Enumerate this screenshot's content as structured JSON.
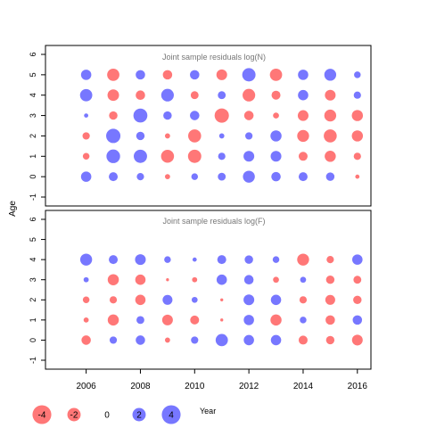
{
  "chart_data": {
    "type": "scatter",
    "ylabel": "Age",
    "xlabel": "Year",
    "years": [
      2006,
      2007,
      2008,
      2009,
      2010,
      2011,
      2012,
      2013,
      2014,
      2015,
      2016
    ],
    "x_ticks": [
      2006,
      2008,
      2010,
      2012,
      2014,
      2016
    ],
    "xlim": [
      2004.5,
      2016.5
    ],
    "colors": {
      "positive": "#5555ff",
      "negative": "#ff5555"
    },
    "panels": [
      {
        "title": "Joint sample residuals log(N)",
        "ylim": [
          -1,
          6
        ],
        "y_ticks": [
          -1,
          0,
          1,
          2,
          3,
          4,
          5,
          6
        ],
        "ages": [
          0,
          1,
          2,
          3,
          4,
          5
        ],
        "residuals": [
          [
            1.2,
            0.9,
            0.6,
            -0.3,
            0.5,
            0.7,
            1.6,
            1.0,
            0.9,
            0.8,
            -0.2
          ],
          [
            -0.5,
            2.1,
            2.0,
            -1.9,
            -2.0,
            0.6,
            1.3,
            1.3,
            -0.9,
            -1.4,
            -0.6
          ],
          [
            -0.6,
            2.3,
            0.8,
            -0.3,
            -1.9,
            0.3,
            0.6,
            1.4,
            -1.6,
            -1.9,
            -1.4
          ],
          [
            0.2,
            -0.8,
            2.2,
            0.8,
            1.0,
            -2.3,
            -1.0,
            -0.4,
            -1.3,
            -1.6,
            -1.4
          ],
          [
            1.7,
            -1.5,
            -1.0,
            1.8,
            -0.7,
            0.7,
            -1.8,
            -0.9,
            1.2,
            -1.3,
            0.6
          ],
          [
            1.2,
            -1.7,
            1.0,
            -1.0,
            1.0,
            -1.3,
            2.0,
            -1.7,
            1.2,
            1.6,
            0.5
          ]
        ]
      },
      {
        "title": "Joint sample residuals log(F)",
        "ylim": [
          -1,
          6
        ],
        "y_ticks": [
          -1,
          0,
          1,
          2,
          3,
          4,
          5,
          6
        ],
        "ages": [
          0,
          1,
          2,
          3,
          4
        ],
        "residuals": [
          [
            -1.0,
            0.6,
            1.0,
            -0.3,
            0.6,
            1.7,
            1.2,
            1.2,
            -0.9,
            -0.8,
            -1.3
          ],
          [
            -0.3,
            -1.4,
            0.7,
            -1.3,
            -0.9,
            -0.1,
            1.2,
            -1.4,
            0.5,
            -1.0,
            1.0
          ],
          [
            -0.5,
            -0.6,
            -1.2,
            1.1,
            0.4,
            -0.1,
            1.3,
            1.2,
            -0.6,
            -1.1,
            -0.8
          ],
          [
            0.3,
            -1.4,
            -1.2,
            -0.1,
            -0.3,
            1.2,
            1.0,
            -0.4,
            0.4,
            -0.8,
            -0.7
          ],
          [
            1.6,
            0.9,
            1.3,
            0.5,
            0.2,
            0.9,
            0.8,
            0.5,
            -1.6,
            -0.6,
            1.2
          ]
        ]
      }
    ],
    "legend": [
      {
        "label": "-4",
        "value": -4
      },
      {
        "label": "-2",
        "value": -2
      },
      {
        "label": "0",
        "value": 0
      },
      {
        "label": "2",
        "value": 2
      },
      {
        "label": "4",
        "value": 4
      }
    ]
  }
}
